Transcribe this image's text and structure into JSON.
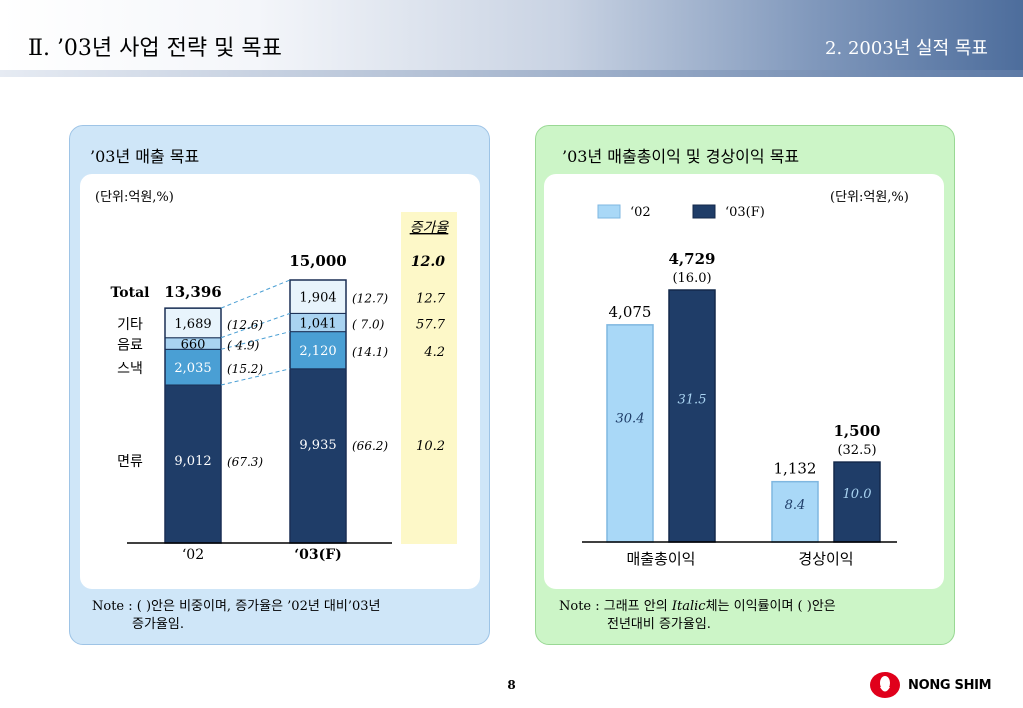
{
  "header": {
    "page_title": "Ⅱ. ’03년 사업 전략 및 목표",
    "section_title": "2. 2003년 실적 목표"
  },
  "left_panel": {
    "title": "’03년 매출 목표",
    "unit": "(단위:억원,%)",
    "growth_header": "증가율",
    "note_line1": "Note : ( )안은 비중이며, 증가율은 ’02년 대비’03년",
    "note_line2": "증가율임."
  },
  "right_panel": {
    "title": "’03년 매출총이익 및 경상이익 목표",
    "unit": "(단위:억원,%)",
    "note_line1_a": "Note : 그래프 안의 ",
    "note_line1_b": "Italic",
    "note_line1_c": "체는 이익률이며 ( )안은",
    "note_line2": "전년대비 증가율임."
  },
  "footer": {
    "page_number": "8",
    "company": "NONG SHIM"
  },
  "colors": {
    "noodle": "#1f3d68",
    "snack": "#4a9fd4",
    "beverage": "#a9d3f1",
    "other": "#e8f4fc",
    "series_02": "#a9d8f7",
    "series_03": "#1f3d68",
    "growth_column": "#fdf8c8",
    "logo_red": "#e0001b"
  },
  "chart_data": [
    {
      "type": "bar",
      "stacked": true,
      "categories": [
        "‘02",
        "‘03(F)"
      ],
      "series": [
        {
          "name": "면류",
          "values": [
            9012,
            9935
          ],
          "shares": [
            "(67.3)",
            "(66.2)"
          ],
          "growth": "10.2"
        },
        {
          "name": "스낵",
          "values": [
            2035,
            2120
          ],
          "shares": [
            "(15.2)",
            "(14.1)"
          ],
          "growth": "4.2"
        },
        {
          "name": "음료",
          "values": [
            660,
            1041
          ],
          "shares": [
            "( 4.9)",
            "(  7.0)"
          ],
          "growth": "57.7"
        },
        {
          "name": "기타",
          "values": [
            1689,
            1904
          ],
          "shares": [
            "(12.6)",
            "(12.7)"
          ],
          "growth": "12.7"
        }
      ],
      "totals": [
        13396,
        15000
      ],
      "total_labels": [
        "13,396",
        "15,000"
      ],
      "total_label": "Total",
      "total_growth": "12.0"
    },
    {
      "type": "bar",
      "categories": [
        "매출총이익",
        "경상이익"
      ],
      "series": [
        {
          "name": "‘02",
          "values": [
            4075,
            1132
          ],
          "labels": [
            "4,075",
            "1,132"
          ],
          "rates": [
            "30.4",
            "8.4"
          ]
        },
        {
          "name": "‘03(F)",
          "values": [
            4729,
            1500
          ],
          "labels": [
            "4,729",
            "1,500"
          ],
          "rates": [
            "31.5",
            "10.0"
          ],
          "growth": [
            "(16.0)",
            "(32.5)"
          ]
        }
      ]
    }
  ]
}
